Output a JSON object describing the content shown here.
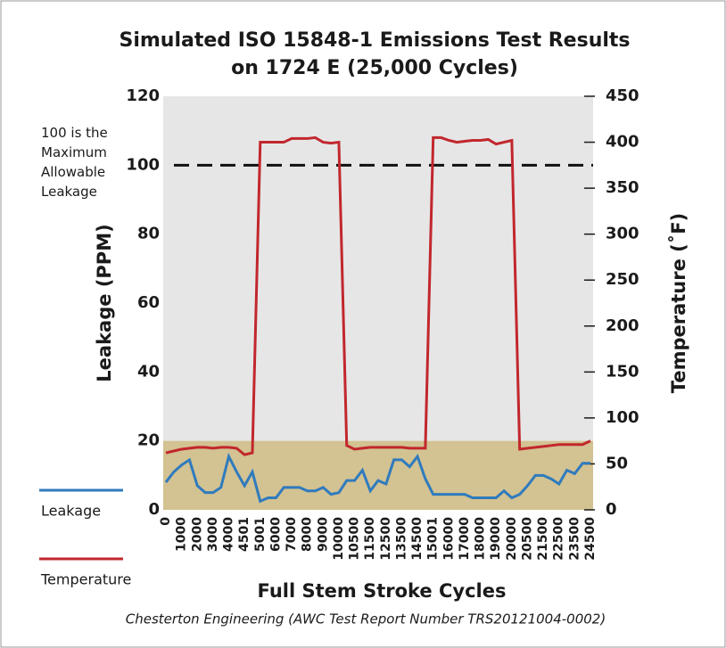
{
  "chart_data": {
    "type": "line",
    "title": [
      "Simulated ISO 15848-1 Emissions Test Results",
      "on 1724 E (25,000 Cycles)"
    ],
    "x_label": "Full Stem Stroke Cycles",
    "y_label": "Leakage (PPM)",
    "y2_label": "Temperature (˚F)",
    "source": "Chesterton Engineering (AWC Test Report Number TRS20121004-0002)",
    "categories": [
      "0",
      null,
      "1000",
      null,
      "2000",
      null,
      "3000",
      null,
      "4000",
      null,
      "4501",
      null,
      "5001",
      null,
      "6000",
      null,
      "7000",
      null,
      "8000",
      null,
      "9000",
      null,
      "10000",
      null,
      "10500",
      null,
      "11500",
      null,
      "12500",
      null,
      "13500",
      null,
      "14500",
      null,
      "15001",
      null,
      "16000",
      null,
      "17000",
      null,
      "18000",
      null,
      "19000",
      null,
      "20000",
      null,
      "20500",
      null,
      "21500",
      null,
      "22500",
      null,
      "23500",
      null,
      "24500"
    ],
    "series": [
      {
        "name": "Leakage",
        "color": "#2f7bbd",
        "values": [
          8,
          11,
          13,
          14.5,
          7,
          5,
          5,
          6.5,
          15.5,
          11,
          7,
          11,
          2.5,
          3.5,
          3.5,
          6.5,
          6.5,
          6.5,
          5.5,
          5.5,
          6.5,
          4.5,
          5,
          8.5,
          8.5,
          11.5,
          5.5,
          8.5,
          7.5,
          14.5,
          14.5,
          12.5,
          15.5,
          9,
          4.5,
          4.5,
          4.5,
          4.5,
          4.5,
          3.5,
          3.5,
          3.5,
          3.5,
          5.5,
          3.5,
          4.5,
          7,
          10,
          10,
          9,
          7.5,
          11.5,
          10.5,
          13.5,
          13.5
        ]
      },
      {
        "name": "Temperature",
        "color": "#c1272d",
        "axis": "y2",
        "values": [
          62,
          64,
          66,
          67,
          68,
          68,
          67,
          68,
          68,
          67,
          60,
          62,
          400,
          400,
          400,
          400,
          404,
          404,
          404,
          405,
          400,
          399,
          400,
          70,
          66,
          67,
          68,
          68,
          68,
          68,
          68,
          67,
          67,
          67,
          405,
          405,
          402,
          400,
          401,
          402,
          402,
          403,
          398,
          400,
          402,
          66,
          67,
          68,
          69,
          70,
          71,
          71,
          71,
          71,
          75
        ]
      }
    ],
    "ylim": [
      0,
      120
    ],
    "yticks": [
      0,
      20,
      40,
      60,
      80,
      100,
      120
    ],
    "y2lim": [
      0,
      450
    ],
    "y2ticks": [
      0,
      50,
      100,
      150,
      200,
      250,
      300,
      350,
      400,
      450
    ],
    "band_ylim": [
      0,
      20
    ],
    "band_color": "#d3c292",
    "plot_background": "#e6e6e7",
    "reference_line": {
      "y": 100,
      "label": "100 is the Maximum Allowable Leakage",
      "color": "#111111"
    },
    "legend": "left",
    "grid": false
  }
}
